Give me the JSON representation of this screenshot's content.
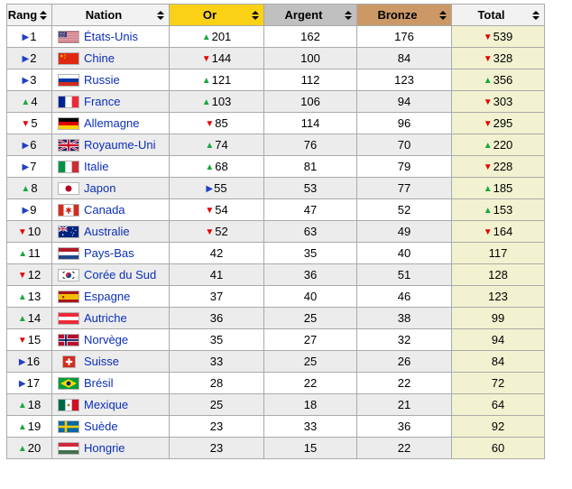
{
  "colors": {
    "up": "#17a93c",
    "down": "#e60000",
    "steady": "#2140c4",
    "link": "#0b2fb8",
    "border": "#aaaaaa",
    "row_even_bg": "#ececec",
    "row_odd_bg": "#ffffff",
    "total_col_bg": "#f2f2d0",
    "header_bg": "#f2f2f2",
    "gold_bg": "#fbd116",
    "silver_bg": "#c0c0c0",
    "bronze_bg": "#cc9966"
  },
  "icons": {
    "up": "▲",
    "down": "▼",
    "steady": "▶"
  },
  "table": {
    "columns": [
      {
        "key": "rank",
        "label": "Rang",
        "bg_key": "header_bg"
      },
      {
        "key": "nation",
        "label": "Nation",
        "bg_key": "header_bg"
      },
      {
        "key": "gold",
        "label": "Or",
        "bg_key": "gold_bg"
      },
      {
        "key": "silver",
        "label": "Argent",
        "bg_key": "silver_bg"
      },
      {
        "key": "bronze",
        "label": "Bronze",
        "bg_key": "bronze_bg"
      },
      {
        "key": "total",
        "label": "Total",
        "bg_key": "header_bg"
      }
    ],
    "rows": [
      {
        "rank": {
          "trend": "steady",
          "value": "1"
        },
        "nation": {
          "flag": "usa",
          "name": "États-Unis"
        },
        "gold": {
          "trend": "up",
          "value": "201"
        },
        "silver": "162",
        "bronze": "176",
        "total": {
          "trend": "down",
          "value": "539"
        }
      },
      {
        "rank": {
          "trend": "steady",
          "value": "2"
        },
        "nation": {
          "flag": "chn",
          "name": "Chine"
        },
        "gold": {
          "trend": "down",
          "value": "144"
        },
        "silver": "100",
        "bronze": "84",
        "total": {
          "trend": "down",
          "value": "328"
        }
      },
      {
        "rank": {
          "trend": "steady",
          "value": "3"
        },
        "nation": {
          "flag": "rus",
          "name": "Russie"
        },
        "gold": {
          "trend": "up",
          "value": "121"
        },
        "silver": "112",
        "bronze": "123",
        "total": {
          "trend": "up",
          "value": "356"
        }
      },
      {
        "rank": {
          "trend": "up",
          "value": "4"
        },
        "nation": {
          "flag": "fra",
          "name": "France"
        },
        "gold": {
          "trend": "up",
          "value": "103"
        },
        "silver": "106",
        "bronze": "94",
        "total": {
          "trend": "down",
          "value": "303"
        }
      },
      {
        "rank": {
          "trend": "down",
          "value": "5"
        },
        "nation": {
          "flag": "deu",
          "name": "Allemagne"
        },
        "gold": {
          "trend": "down",
          "value": "85"
        },
        "silver": "114",
        "bronze": "96",
        "total": {
          "trend": "down",
          "value": "295"
        }
      },
      {
        "rank": {
          "trend": "steady",
          "value": "6"
        },
        "nation": {
          "flag": "gbr",
          "name": "Royaume-Uni"
        },
        "gold": {
          "trend": "up",
          "value": "74"
        },
        "silver": "76",
        "bronze": "70",
        "total": {
          "trend": "up",
          "value": "220"
        }
      },
      {
        "rank": {
          "trend": "steady",
          "value": "7"
        },
        "nation": {
          "flag": "ita",
          "name": "Italie"
        },
        "gold": {
          "trend": "up",
          "value": "68"
        },
        "silver": "81",
        "bronze": "79",
        "total": {
          "trend": "down",
          "value": "228"
        }
      },
      {
        "rank": {
          "trend": "up",
          "value": "8"
        },
        "nation": {
          "flag": "jpn",
          "name": "Japon"
        },
        "gold": {
          "trend": "steady",
          "value": "55"
        },
        "silver": "53",
        "bronze": "77",
        "total": {
          "trend": "up",
          "value": "185"
        }
      },
      {
        "rank": {
          "trend": "steady",
          "value": "9"
        },
        "nation": {
          "flag": "can",
          "name": "Canada"
        },
        "gold": {
          "trend": "down",
          "value": "54"
        },
        "silver": "47",
        "bronze": "52",
        "total": {
          "trend": "up",
          "value": "153"
        }
      },
      {
        "rank": {
          "trend": "down",
          "value": "10"
        },
        "nation": {
          "flag": "aus",
          "name": "Australie"
        },
        "gold": {
          "trend": "down",
          "value": "52"
        },
        "silver": "63",
        "bronze": "49",
        "total": {
          "trend": "down",
          "value": "164"
        }
      },
      {
        "rank": {
          "trend": "up",
          "value": "11"
        },
        "nation": {
          "flag": "nld",
          "name": "Pays-Bas"
        },
        "gold": {
          "trend": "none",
          "value": "42"
        },
        "silver": "35",
        "bronze": "40",
        "total": {
          "trend": "none",
          "value": "117"
        }
      },
      {
        "rank": {
          "trend": "down",
          "value": "12"
        },
        "nation": {
          "flag": "kor",
          "name": "Corée du Sud"
        },
        "gold": {
          "trend": "none",
          "value": "41"
        },
        "silver": "36",
        "bronze": "51",
        "total": {
          "trend": "none",
          "value": "128"
        }
      },
      {
        "rank": {
          "trend": "up",
          "value": "13"
        },
        "nation": {
          "flag": "esp",
          "name": "Espagne"
        },
        "gold": {
          "trend": "none",
          "value": "37"
        },
        "silver": "40",
        "bronze": "46",
        "total": {
          "trend": "none",
          "value": "123"
        }
      },
      {
        "rank": {
          "trend": "up",
          "value": "14"
        },
        "nation": {
          "flag": "aut",
          "name": "Autriche"
        },
        "gold": {
          "trend": "none",
          "value": "36"
        },
        "silver": "25",
        "bronze": "38",
        "total": {
          "trend": "none",
          "value": "99"
        }
      },
      {
        "rank": {
          "trend": "down",
          "value": "15"
        },
        "nation": {
          "flag": "nor",
          "name": "Norvège"
        },
        "gold": {
          "trend": "none",
          "value": "35"
        },
        "silver": "27",
        "bronze": "32",
        "total": {
          "trend": "none",
          "value": "94"
        }
      },
      {
        "rank": {
          "trend": "steady",
          "value": "16"
        },
        "nation": {
          "flag": "sui",
          "name": "Suisse"
        },
        "gold": {
          "trend": "none",
          "value": "33"
        },
        "silver": "25",
        "bronze": "26",
        "total": {
          "trend": "none",
          "value": "84"
        }
      },
      {
        "rank": {
          "trend": "steady",
          "value": "17"
        },
        "nation": {
          "flag": "bra",
          "name": "Brésil"
        },
        "gold": {
          "trend": "none",
          "value": "28"
        },
        "silver": "22",
        "bronze": "22",
        "total": {
          "trend": "none",
          "value": "72"
        }
      },
      {
        "rank": {
          "trend": "up",
          "value": "18"
        },
        "nation": {
          "flag": "mex",
          "name": "Mexique"
        },
        "gold": {
          "trend": "none",
          "value": "25"
        },
        "silver": "18",
        "bronze": "21",
        "total": {
          "trend": "none",
          "value": "64"
        }
      },
      {
        "rank": {
          "trend": "up",
          "value": "19"
        },
        "nation": {
          "flag": "swe",
          "name": "Suède"
        },
        "gold": {
          "trend": "none",
          "value": "23"
        },
        "silver": "33",
        "bronze": "36",
        "total": {
          "trend": "none",
          "value": "92"
        }
      },
      {
        "rank": {
          "trend": "up",
          "value": "20"
        },
        "nation": {
          "flag": "hun",
          "name": "Hongrie"
        },
        "gold": {
          "trend": "none",
          "value": "23"
        },
        "silver": "15",
        "bronze": "22",
        "total": {
          "trend": "none",
          "value": "60"
        }
      }
    ]
  }
}
